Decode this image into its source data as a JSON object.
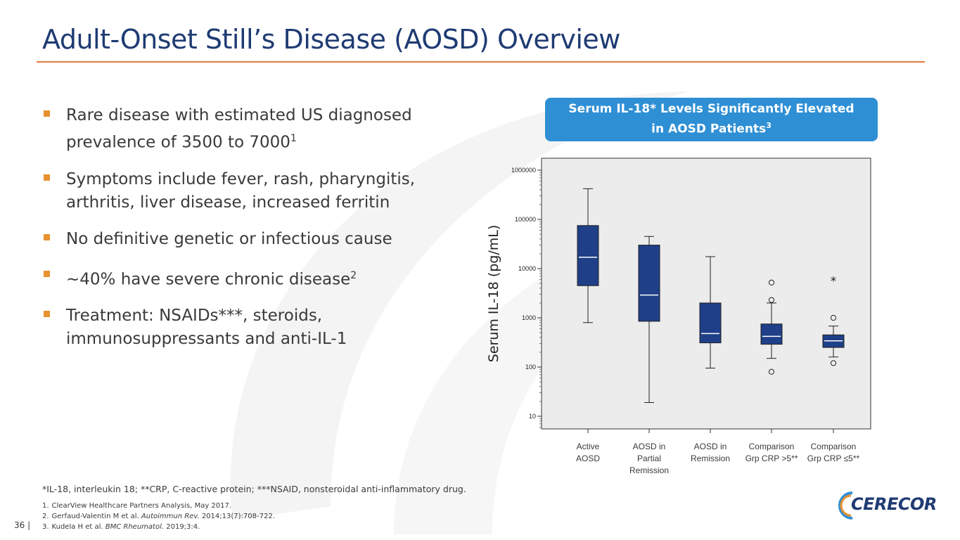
{
  "slide": {
    "title": "Adult-Onset Still’s Disease (AOSD) Overview",
    "page_number": "36 |"
  },
  "bullets": [
    {
      "text": "Rare disease with estimated US diagnosed prevalence of 3500 to 7000",
      "sup": "1"
    },
    {
      "text": "Symptoms include fever, rash, pharyngitis, arthritis, liver disease, increased ferritin",
      "sup": ""
    },
    {
      "text": "No definitive genetic or infectious cause",
      "sup": ""
    },
    {
      "text": "~40% have severe chronic disease",
      "sup": "2"
    },
    {
      "text": "Treatment: NSAIDs***, steroids, immunosuppressants and anti-IL-1",
      "sup": ""
    }
  ],
  "callout": {
    "line1": "Serum IL-18* Levels Significantly Elevated",
    "line2": "in AOSD Patients",
    "sup": "3"
  },
  "footnote": "*IL-18, interleukin 18; **CRP, C-reactive protein; ***NSAID, nonsteroidal anti-inflammatory drug.",
  "references": [
    {
      "num": "1.",
      "text": "ClearView Healthcare Partners Analysis, May 2017.",
      "journal": "",
      "rest": ""
    },
    {
      "num": "2.",
      "text": "Gerfaud-Valentin M et al. ",
      "journal": "Autoimmun Rev.",
      "rest": " 2014;13(7):708-722."
    },
    {
      "num": "3.",
      "text": "Kudela H et al. ",
      "journal": "BMC Rheumatol",
      "rest": ". 2019;3:4."
    }
  ],
  "logo": {
    "text": "CERECOR"
  },
  "colors": {
    "title": "#1f3b73",
    "accent_orange": "#e07b39",
    "bullet_square": "#e8912f",
    "callout_bg": "#2f8fd4",
    "box_fill": "#1f3f88",
    "plot_bg": "#ececec"
  },
  "chart_data": {
    "type": "boxplot",
    "ylabel": "Serum IL-18 (pg/mL)",
    "yscale": "log",
    "ylim": [
      10,
      1000000
    ],
    "yticks": [
      "10",
      "100",
      "1000",
      "10000",
      "100000",
      "1000000"
    ],
    "ytick_values": [
      10,
      100,
      1000,
      10000,
      100000,
      1000000
    ],
    "grid": false,
    "categories": [
      [
        "Active",
        "AOSD"
      ],
      [
        "AOSD in",
        "Partial",
        "Remission"
      ],
      [
        "AOSD in",
        "Remission"
      ],
      [
        "Comparison",
        "Grp CRP >5**"
      ],
      [
        "Comparison",
        "Grp CRP ≤5**"
      ]
    ],
    "boxes": [
      {
        "min": 800,
        "q1": 4500,
        "median": 17000,
        "q3": 75000,
        "max": 420000,
        "outliers": [],
        "extreme_marker": ""
      },
      {
        "min": 19,
        "q1": 850,
        "median": 2900,
        "q3": 30000,
        "max": 45000,
        "outliers": [],
        "extreme_marker": ""
      },
      {
        "min": 95,
        "q1": 310,
        "median": 480,
        "q3": 2000,
        "max": 17500,
        "outliers": [],
        "extreme_marker": ""
      },
      {
        "min": 150,
        "q1": 290,
        "median": 420,
        "q3": 750,
        "max": 2000,
        "outliers": [
          80,
          2300,
          5200
        ],
        "extreme_marker": ""
      },
      {
        "min": 160,
        "q1": 250,
        "median": 340,
        "q3": 450,
        "max": 680,
        "outliers": [
          120,
          1000
        ],
        "extreme_marker": "*",
        "extreme_value": 6000
      }
    ]
  }
}
